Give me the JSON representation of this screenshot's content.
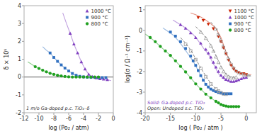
{
  "chart_data": [
    {
      "type": "scatter",
      "xlabel": "log (Po₂ / atm)",
      "ylabel": "δ × 10⁵",
      "xlim": [
        -12,
        0
      ],
      "ylim": [
        -2,
        4
      ],
      "xticks": [
        -12,
        -10,
        -8,
        -6,
        -4,
        -2,
        0
      ],
      "yticks": [
        -2,
        -1,
        0,
        1,
        2,
        3,
        4
      ],
      "grid": false,
      "legend": "upper-right",
      "hline": 0,
      "annotations": [
        {
          "text": "1 m/o Ga-doped p.c. TiO₂₋δ",
          "color": "#333333"
        }
      ],
      "series": [
        {
          "type": "line",
          "color": "#8040C0",
          "line_style": "solid",
          "x": [
            -6.8,
            -6.3,
            -5.8,
            -5.3,
            -4.8,
            -4.3,
            -3.8,
            -3.3,
            -2.8,
            -2.3,
            -1.8,
            -1.3,
            -0.8,
            -0.3
          ],
          "values": [
            3.6,
            3.0,
            2.45,
            1.85,
            1.35,
            0.85,
            0.45,
            0.15,
            0.02,
            -0.05,
            -0.1,
            -0.12,
            -0.15,
            -0.2
          ]
        },
        {
          "type": "scatter",
          "name": "1000 °C",
          "color": "#8040C0",
          "marker": "triangle-up",
          "x": [
            -5.8,
            -5.3,
            -4.8,
            -4.3,
            -3.8,
            -3.3,
            -2.8,
            -2.3,
            -1.8,
            -1.3,
            -0.8
          ],
          "values": [
            2.45,
            1.85,
            1.35,
            0.85,
            0.45,
            0.15,
            0.02,
            -0.05,
            -0.1,
            -0.12,
            -0.15
          ]
        },
        {
          "type": "line",
          "color": "#3070C0",
          "line_style": "solid",
          "x": [
            -9.5,
            -9.0,
            -8.5,
            -8.0,
            -7.5,
            -7.0,
            -6.5,
            -6.0,
            -5.5,
            -5.0,
            -4.5,
            -4.0,
            -3.5,
            -3.0,
            -2.5,
            -2.0
          ],
          "values": [
            1.7,
            1.5,
            1.35,
            1.1,
            0.88,
            0.68,
            0.5,
            0.34,
            0.2,
            0.1,
            0.04,
            0.01,
            -0.01,
            -0.02,
            -0.02,
            -0.03
          ]
        },
        {
          "type": "scatter",
          "name": "900 °C",
          "color": "#3070C0",
          "marker": "square",
          "x": [
            -8.5,
            -8.0,
            -7.5,
            -7.0,
            -6.5,
            -6.0,
            -5.5,
            -5.0,
            -4.5,
            -4.0,
            -3.5,
            -3.0,
            -2.5,
            -2.0,
            -1.5,
            -1.0
          ],
          "values": [
            1.35,
            1.1,
            0.88,
            0.68,
            0.5,
            0.34,
            0.2,
            0.1,
            0.04,
            0.01,
            -0.01,
            -0.02,
            -0.02,
            -0.03,
            -0.03,
            -0.03
          ]
        },
        {
          "type": "line",
          "color": "#20A020",
          "line_style": "solid",
          "x": [
            -11.5,
            -11.0,
            -10.5,
            -10.0,
            -9.5,
            -9.0,
            -8.5,
            -8.0,
            -7.5,
            -7.0,
            -6.5,
            -6.0,
            -5.5,
            -5.0,
            -4.5
          ],
          "values": [
            0.85,
            0.72,
            0.58,
            0.48,
            0.38,
            0.29,
            0.21,
            0.15,
            0.1,
            0.06,
            0.03,
            0.01,
            0.0,
            0.0,
            0.0
          ]
        },
        {
          "type": "scatter",
          "name": "800 °C",
          "color": "#20A020",
          "marker": "circle",
          "x": [
            -10.5,
            -10.0,
            -9.5,
            -9.0,
            -8.5,
            -8.0,
            -7.5,
            -7.0,
            -6.5,
            -6.0,
            -5.5,
            -5.0,
            -4.5,
            -4.0,
            -3.5,
            -3.0,
            -2.5,
            -2.0
          ],
          "values": [
            0.58,
            0.48,
            0.38,
            0.29,
            0.21,
            0.15,
            0.1,
            0.06,
            0.03,
            0.01,
            0.0,
            0.0,
            0.0,
            0.0,
            0.0,
            0.0,
            0.0,
            0.0
          ]
        }
      ]
    },
    {
      "type": "scatter",
      "xlabel": "log ( Po₂ / atm )",
      "ylabel": "log(σ / Ω⁻¹ cm⁻¹)",
      "xlim": [
        -20,
        2
      ],
      "ylim": [
        -4,
        1.2
      ],
      "xticks": [
        -20,
        -15,
        -10,
        -5,
        0
      ],
      "yticks": [
        -4,
        -3,
        -2,
        -1,
        0,
        1
      ],
      "grid": false,
      "legend": "upper-right",
      "annotations": [
        {
          "text": "Solid: Ga-doped p.c. TiO₂",
          "color": "#8040C0"
        },
        {
          "text": "Open: Undoped s.c. TiO₂",
          "color": "#333333"
        }
      ],
      "series": [
        {
          "type": "line",
          "color": "#CC2200",
          "line_style": "solid",
          "x": [
            -11.0,
            -10.0,
            -9.0,
            -8.0,
            -7.0,
            -6.0,
            -5.0,
            -4.0,
            -3.0,
            -2.0,
            -1.0,
            0.0,
            1.0
          ],
          "values": [
            0.85,
            0.76,
            0.65,
            0.5,
            0.32,
            0.1,
            -0.35,
            -1.05,
            -1.65,
            -2.0,
            -2.1,
            -2.15,
            -2.15
          ]
        },
        {
          "type": "scatter",
          "name": "1100 °C",
          "color": "#CC2200",
          "marker": "triangle-down",
          "x": [
            -9.5,
            -8.5,
            -7.5,
            -6.5,
            -5.5,
            -5.0,
            -4.5,
            -4.0,
            -3.5,
            -3.0,
            -2.5,
            -2.0,
            -1.5,
            -1.0,
            -0.5,
            0.0
          ],
          "values": [
            0.62,
            0.48,
            0.3,
            0.08,
            -0.3,
            -0.55,
            -0.85,
            -1.15,
            -1.45,
            -1.7,
            -1.88,
            -2.0,
            -2.05,
            -2.1,
            -2.1,
            -2.15
          ]
        },
        {
          "type": "line",
          "color": "#8040C0",
          "line_style": "solid",
          "x": [
            -14.5,
            -13.5,
            -12.5,
            -11.5,
            -10.5,
            -9.5,
            -8.5,
            -7.5,
            -6.5,
            -5.5,
            -4.5,
            -3.5,
            -2.5,
            -1.5,
            -0.5
          ],
          "values": [
            0.5,
            0.35,
            0.2,
            0.02,
            -0.2,
            -0.5,
            -0.85,
            -1.15,
            -1.62,
            -2.1,
            -2.35,
            -2.48,
            -2.48,
            -2.4,
            -2.28
          ]
        },
        {
          "type": "scatter",
          "name": "1000 °C",
          "color": "#8040C0",
          "marker": "triangle-up",
          "x": [
            -13.0,
            -12.0,
            -11.0,
            -10.0,
            -9.0,
            -8.0,
            -7.5,
            -7.0,
            -6.5,
            -6.0,
            -5.5,
            -5.0,
            -4.5,
            -4.0,
            -3.5,
            -3.0,
            -2.5,
            -2.0,
            -1.5,
            -1.0,
            -0.5,
            0.0
          ],
          "values": [
            0.28,
            0.1,
            -0.12,
            -0.35,
            -0.62,
            -0.92,
            -1.1,
            -1.3,
            -1.55,
            -1.78,
            -2.0,
            -2.18,
            -2.28,
            -2.38,
            -2.43,
            -2.48,
            -2.48,
            -2.45,
            -2.4,
            -2.35,
            -2.3,
            -2.28
          ]
        },
        {
          "type": "line",
          "color": "#3070C0",
          "line_style": "solid",
          "x": [
            -16.5,
            -15.5,
            -14.5,
            -13.5,
            -12.5,
            -11.5,
            -10.5,
            -9.5,
            -8.5,
            -7.5,
            -6.5,
            -5.5,
            -4.5,
            -3.5
          ],
          "values": [
            0.12,
            -0.05,
            -0.22,
            -0.48,
            -0.8,
            -1.15,
            -1.5,
            -1.95,
            -2.42,
            -2.78,
            -2.97,
            -3.05,
            -3.08,
            -3.08
          ]
        },
        {
          "type": "scatter",
          "name": "900 °C",
          "color": "#3070C0",
          "marker": "square",
          "x": [
            -15.0,
            -14.0,
            -13.0,
            -12.0,
            -11.0,
            -10.5,
            -10.0,
            -9.5,
            -9.0,
            -8.5,
            -8.0,
            -7.5,
            -7.0,
            -6.5,
            -6.0,
            -5.5,
            -5.0,
            -4.5,
            -4.0,
            -3.5,
            -3.0
          ],
          "values": [
            -0.08,
            -0.28,
            -0.55,
            -0.88,
            -1.25,
            -1.48,
            -1.7,
            -1.95,
            -2.2,
            -2.42,
            -2.62,
            -2.75,
            -2.85,
            -2.92,
            -2.97,
            -3.02,
            -3.05,
            -3.08,
            -3.08,
            -3.08,
            -3.08
          ]
        },
        {
          "type": "line",
          "color": "#20A020",
          "line_style": "solid",
          "x": [
            -20.0,
            -19.0,
            -18.0,
            -17.0,
            -16.0,
            -15.0,
            -14.0,
            -13.0,
            -12.0,
            -11.0,
            -10.0,
            -9.0,
            -8.0,
            -7.0,
            -6.0,
            -5.0,
            -4.0,
            -3.0
          ],
          "values": [
            -0.18,
            -0.35,
            -0.55,
            -0.78,
            -1.0,
            -1.22,
            -1.48,
            -1.75,
            -2.02,
            -2.3,
            -2.6,
            -2.85,
            -3.1,
            -3.28,
            -3.45,
            -3.6,
            -3.7,
            -3.7
          ]
        },
        {
          "type": "scatter",
          "name": "800 °C",
          "color": "#20A020",
          "marker": "circle",
          "x": [
            -19.0,
            -18.0,
            -17.0,
            -16.0,
            -15.0,
            -14.0,
            -13.0,
            -12.0,
            -11.0,
            -10.0,
            -9.0,
            -8.0,
            -7.0,
            -6.0,
            -5.5,
            -5.0,
            -4.5,
            -4.0,
            -3.5,
            -3.0,
            -2.5,
            -2.0,
            -1.5
          ],
          "values": [
            -0.35,
            -0.55,
            -0.78,
            -1.0,
            -1.22,
            -1.48,
            -1.75,
            -2.02,
            -2.3,
            -2.6,
            -2.85,
            -3.1,
            -3.28,
            -3.45,
            -3.52,
            -3.6,
            -3.65,
            -3.68,
            -3.7,
            -3.7,
            -3.7,
            -3.7,
            -3.7
          ]
        },
        {
          "type": "scatter",
          "color": "#999999",
          "marker": "open-triangle-right",
          "x": [
            -6.0,
            -5.5,
            -5.0,
            -4.5,
            -4.0,
            -3.5,
            -3.0,
            -2.5,
            -2.0,
            -1.5,
            -1.0,
            -0.5,
            0.0,
            0.5
          ],
          "values": [
            0.06,
            -0.22,
            -0.5,
            -0.8,
            -1.1,
            -1.38,
            -1.62,
            -1.8,
            -1.95,
            -2.05,
            -2.1,
            -2.15,
            -2.18,
            -2.2
          ]
        },
        {
          "type": "line",
          "color": "#666666",
          "line_style": "dashed",
          "x": [
            -7.0,
            -6.0,
            -5.0,
            -4.0,
            -3.0,
            -2.0,
            -1.0,
            0.0,
            1.0
          ],
          "values": [
            0.4,
            0.1,
            -0.45,
            -1.05,
            -1.6,
            -1.95,
            -2.1,
            -2.18,
            -2.22
          ]
        },
        {
          "type": "scatter",
          "color": "#999999",
          "marker": "open-triangle-up",
          "x": [
            -9.0,
            -8.0,
            -7.0,
            -6.5,
            -6.0,
            -5.5,
            -5.0,
            -4.5,
            -4.0,
            -3.5,
            -3.0,
            -2.5,
            -2.0
          ],
          "values": [
            -0.08,
            -0.38,
            -0.75,
            -1.0,
            -1.28,
            -1.55,
            -1.8,
            -2.0,
            -2.15,
            -2.25,
            -2.3,
            -2.3,
            -2.28
          ]
        },
        {
          "type": "line",
          "color": "#666666",
          "line_style": "dashed",
          "x": [
            -10.0,
            -9.0,
            -8.0,
            -7.0,
            -6.0,
            -5.0,
            -4.0,
            -3.0,
            -2.0
          ],
          "values": [
            0.18,
            -0.05,
            -0.35,
            -0.72,
            -1.22,
            -1.75,
            -2.12,
            -2.28,
            -2.28
          ]
        },
        {
          "type": "scatter",
          "color": "#999999",
          "marker": "open-square",
          "x": [
            -12.0,
            -11.0,
            -10.0,
            -9.0,
            -8.0,
            -7.0,
            -6.0,
            -5.5,
            -5.0,
            -4.5,
            -4.0
          ],
          "values": [
            -0.68,
            -1.0,
            -1.42,
            -1.85,
            -2.25,
            -2.6,
            -2.85,
            -2.95,
            -3.02,
            -3.08,
            -3.1
          ]
        },
        {
          "type": "line",
          "color": "#666666",
          "line_style": "dashed",
          "x": [
            -13.0,
            -12.0,
            -11.0,
            -10.0,
            -9.0,
            -8.0,
            -7.0,
            -6.0,
            -5.0,
            -4.0
          ],
          "values": [
            -0.35,
            -0.62,
            -0.95,
            -1.38,
            -1.82,
            -2.22,
            -2.58,
            -2.85,
            -3.02,
            -3.1
          ]
        }
      ]
    }
  ]
}
